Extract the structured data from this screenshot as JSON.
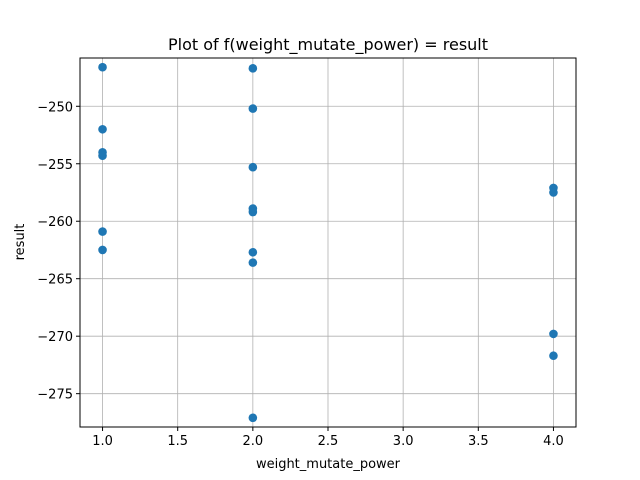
{
  "chart_data": {
    "type": "scatter",
    "title": "Plot of f(weight_mutate_power) = result",
    "xlabel": "weight_mutate_power",
    "ylabel": "result",
    "xlim": [
      0.85,
      4.15
    ],
    "ylim": [
      -277.9,
      -245.8
    ],
    "xticks": [
      1.0,
      1.5,
      2.0,
      2.5,
      3.0,
      3.5,
      4.0
    ],
    "xtick_labels": [
      "1.0",
      "1.5",
      "2.0",
      "2.5",
      "3.0",
      "3.5",
      "4.0"
    ],
    "yticks": [
      -250,
      -255,
      -260,
      -265,
      -270,
      -275
    ],
    "ytick_labels": [
      "−250",
      "−255",
      "−260",
      "−265",
      "−270",
      "−275"
    ],
    "grid": true,
    "marker_color": "#1f77b4",
    "points": [
      {
        "x": 1.0,
        "y": -246.6
      },
      {
        "x": 1.0,
        "y": -252.0
      },
      {
        "x": 1.0,
        "y": -254.0
      },
      {
        "x": 1.0,
        "y": -254.3
      },
      {
        "x": 1.0,
        "y": -260.9
      },
      {
        "x": 1.0,
        "y": -262.5
      },
      {
        "x": 2.0,
        "y": -246.7
      },
      {
        "x": 2.0,
        "y": -250.2
      },
      {
        "x": 2.0,
        "y": -255.3
      },
      {
        "x": 2.0,
        "y": -258.9
      },
      {
        "x": 2.0,
        "y": -259.2
      },
      {
        "x": 2.0,
        "y": -262.7
      },
      {
        "x": 2.0,
        "y": -263.6
      },
      {
        "x": 2.0,
        "y": -277.1
      },
      {
        "x": 4.0,
        "y": -257.1
      },
      {
        "x": 4.0,
        "y": -257.5
      },
      {
        "x": 4.0,
        "y": -269.8
      },
      {
        "x": 4.0,
        "y": -271.7
      }
    ]
  }
}
